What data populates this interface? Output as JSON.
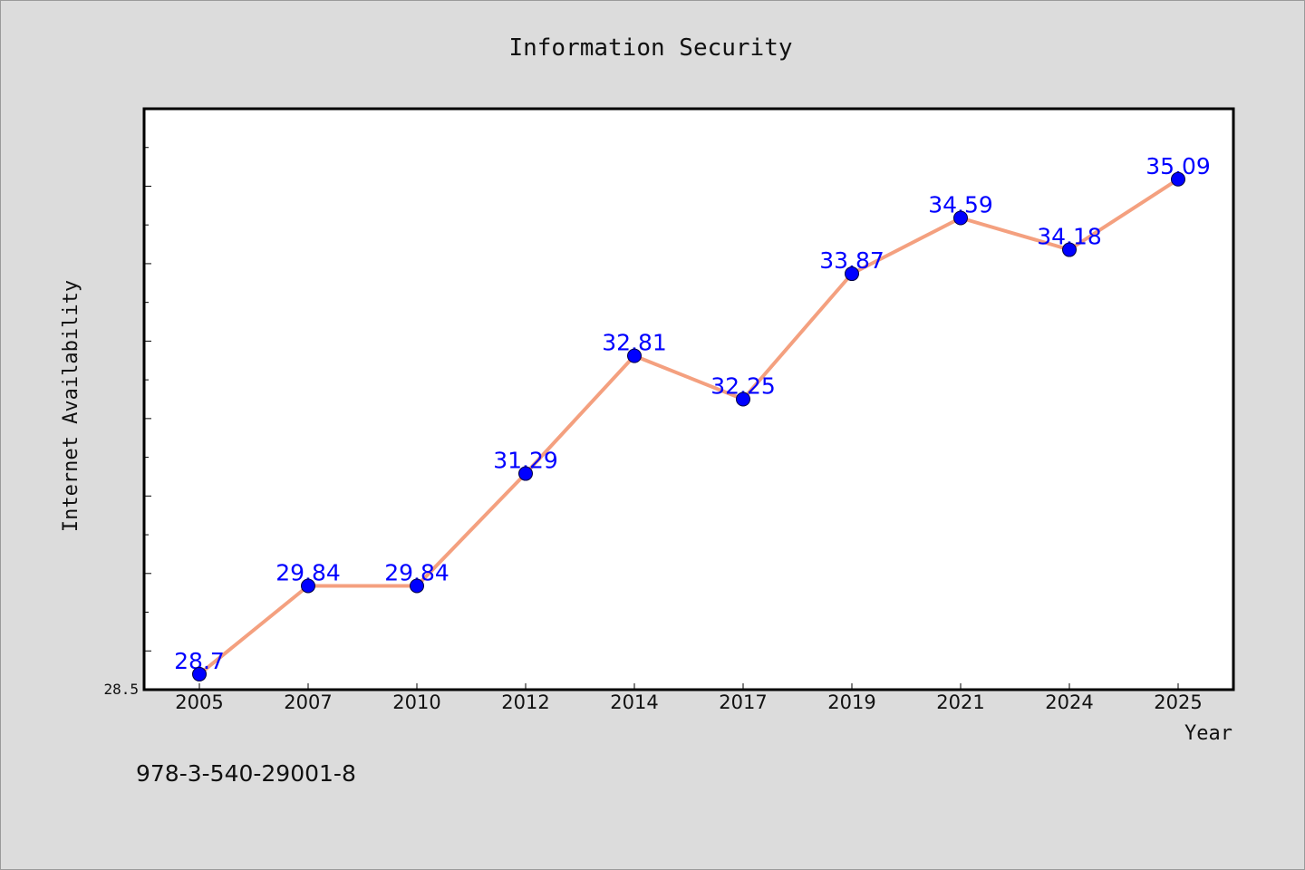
{
  "footer_text": "978-3-540-29001-8",
  "colors": {
    "line": "#f4a07f",
    "marker": "#0000ff",
    "label": "#0000ff",
    "background": "#dcdcdc",
    "plot_bg": "#ffffff"
  },
  "chart_data": {
    "type": "line",
    "title": "Information Security",
    "xlabel": "Year",
    "ylabel": "Internet Availability",
    "categories": [
      "2005",
      "2007",
      "2010",
      "2012",
      "2014",
      "2017",
      "2019",
      "2021",
      "2024",
      "2025"
    ],
    "values": [
      28.7,
      29.84,
      29.84,
      31.29,
      32.81,
      32.25,
      33.87,
      34.59,
      34.18,
      35.09
    ],
    "data_labels": [
      "28.7",
      "29.84",
      "29.84",
      "31.29",
      "32.81",
      "32.25",
      "33.87",
      "34.59",
      "34.18",
      "35.09"
    ],
    "ylim": [
      28.5,
      36.0
    ],
    "yticks_labeled": [
      "28.5"
    ],
    "grid": false,
    "legend": "none"
  }
}
